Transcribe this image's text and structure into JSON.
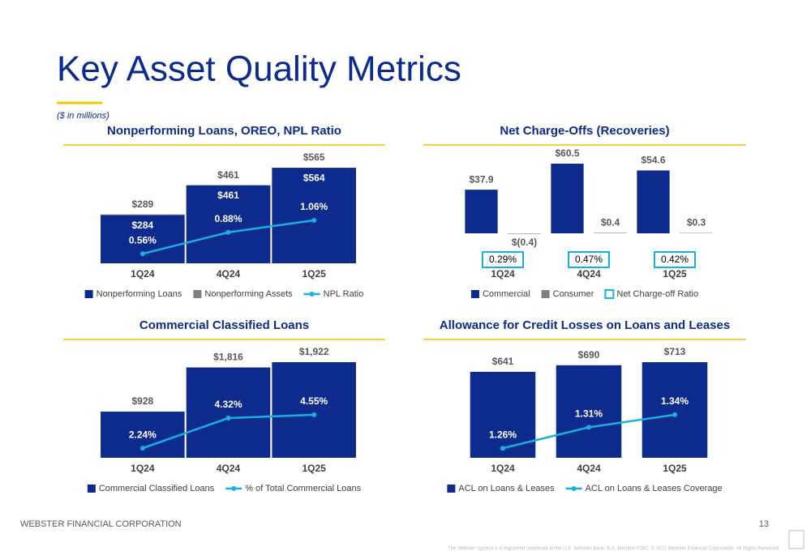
{
  "header": {
    "title": "Key Asset Quality Metrics",
    "subtitle": "($ in millions)"
  },
  "chart_data": [
    {
      "type": "combo",
      "title": "Nonperforming Loans, OREO, NPL Ratio",
      "bar_mode": "overlay",
      "categories": [
        "1Q24",
        "4Q24",
        "1Q25"
      ],
      "series": [
        {
          "name": "Nonperforming Loans",
          "type": "bar",
          "color": "#0d2b8c",
          "values": [
            284,
            461,
            564
          ],
          "value_labels": [
            "$284",
            "$461",
            "$564"
          ],
          "label_position": "inside"
        },
        {
          "name": "Nonperforming Assets",
          "type": "bar",
          "color": "#7f7f7f",
          "values": [
            289,
            461,
            565
          ],
          "value_labels": [
            "$289",
            "$461",
            "$565"
          ],
          "label_position": "above"
        },
        {
          "name": "NPL Ratio",
          "type": "line",
          "axis": "y2",
          "color": "#1ab0e0",
          "values": [
            0.56,
            0.88,
            1.06
          ],
          "value_labels": [
            "0.56%",
            "0.88%",
            "1.06%"
          ]
        }
      ]
    },
    {
      "type": "combo",
      "title": "Net Charge-Offs (Recoveries)",
      "bar_mode": "grouped",
      "categories": [
        "1Q24",
        "4Q24",
        "1Q25"
      ],
      "series": [
        {
          "name": "Commercial",
          "type": "bar",
          "color": "#0d2b8c",
          "values": [
            37.9,
            60.5,
            54.6
          ],
          "value_labels": [
            "$37.9",
            "$60.5",
            "$54.6"
          ],
          "label_position": "above"
        },
        {
          "name": "Consumer",
          "type": "bar",
          "color": "#7f7f7f",
          "values": [
            -0.4,
            0.4,
            0.3
          ],
          "value_labels": [
            "$(0.4)",
            "$0.4",
            "$0.3"
          ],
          "label_position": "above"
        },
        {
          "name": "Net Charge-off Ratio",
          "type": "box",
          "color": "#1ab0e0",
          "values": [
            0.29,
            0.47,
            0.42
          ],
          "value_labels": [
            "0.29%",
            "0.47%",
            "0.42%"
          ]
        }
      ]
    },
    {
      "type": "combo",
      "title": "Commercial Classified Loans",
      "bar_mode": "overlay",
      "categories": [
        "1Q24",
        "4Q24",
        "1Q25"
      ],
      "series": [
        {
          "name": "Commercial Classified Loans",
          "type": "bar",
          "color": "#0d2b8c",
          "values": [
            928,
            1816,
            1922
          ],
          "value_labels": [
            "$928",
            "$1,816",
            "$1,922"
          ],
          "label_position": "above"
        },
        {
          "name": "% of Total Commercial Loans",
          "type": "line",
          "axis": "y2",
          "color": "#1ab0e0",
          "values": [
            2.24,
            4.32,
            4.55
          ],
          "value_labels": [
            "2.24%",
            "4.32%",
            "4.55%"
          ]
        }
      ]
    },
    {
      "type": "combo",
      "title": "Allowance for Credit Losses on Loans and Leases",
      "bar_mode": "overlay",
      "categories": [
        "1Q24",
        "4Q24",
        "1Q25"
      ],
      "series": [
        {
          "name": "ACL on Loans & Leases",
          "type": "bar",
          "color": "#0d2b8c",
          "values": [
            641,
            690,
            713
          ],
          "value_labels": [
            "$641",
            "$690",
            "$713"
          ],
          "label_position": "above"
        },
        {
          "name": "ACL on Loans & Leases Coverage",
          "type": "line",
          "axis": "y2",
          "color": "#1ab0e0",
          "values": [
            1.26,
            1.31,
            1.34
          ],
          "value_labels": [
            "1.26%",
            "1.31%",
            "1.34%"
          ]
        }
      ]
    }
  ],
  "footer": {
    "company": "WEBSTER FINANCIAL CORPORATION",
    "page": 13,
    "disclaimer": "The Webster Symbol is a registered trademark in the U.S. Webster Bank, N.A. Member FDIC. © 2021 Webster Financial Corporation. All Rights Reserved."
  }
}
